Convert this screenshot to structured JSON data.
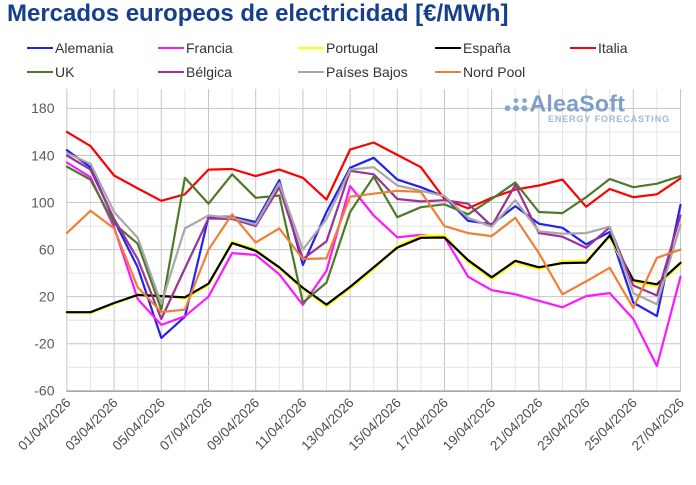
{
  "title": "Mercados europeos de electricidad [€/MWh]",
  "title_color": "#16408c",
  "watermark": {
    "brand": "AleaSoft",
    "tagline": "ENERGY FORECASTING",
    "brand_color": "#7d9fc7",
    "tagline_color": "#9fb9d6"
  },
  "axis": {
    "y_tick_labels": [
      "180",
      "140",
      "100",
      "60",
      "20",
      "-20",
      "-60"
    ],
    "x_tick_labels": [
      "01/04/2026",
      "03/04/2026",
      "05/04/2026",
      "07/04/2026",
      "09/04/2026",
      "11/04/2026",
      "13/04/2026",
      "15/04/2026",
      "17/04/2026",
      "19/04/2026",
      "21/04/2026",
      "23/04/2026",
      "25/04/2026",
      "27/04/2026"
    ]
  },
  "chart_data": {
    "type": "line",
    "title": "Mercados europeos de electricidad [€/MWh]",
    "xlabel": "",
    "ylabel": "",
    "ylim": [
      -60,
      196.5
    ],
    "y_major_step": 40,
    "y_minor_step": 20,
    "grid": true,
    "legend_position": "top",
    "x": [
      "01/04/2026",
      "02/04/2026",
      "03/04/2026",
      "04/04/2026",
      "05/04/2026",
      "06/04/2026",
      "07/04/2026",
      "08/04/2026",
      "09/04/2026",
      "10/04/2026",
      "11/04/2026",
      "12/04/2026",
      "13/04/2026",
      "14/04/2026",
      "15/04/2026",
      "16/04/2026",
      "17/04/2026",
      "18/04/2026",
      "19/04/2026",
      "20/04/2026",
      "21/04/2026",
      "22/04/2026",
      "23/04/2026",
      "24/04/2026",
      "25/04/2026",
      "26/04/2026",
      "27/04/2026"
    ],
    "series": [
      {
        "name": "Alemania",
        "color": "#2222f5",
        "values": [
          144.5,
          130,
          85,
          45,
          -15,
          3,
          88,
          88,
          83.5,
          119,
          47,
          92,
          129.5,
          138,
          119.5,
          113,
          105,
          84.5,
          81.5,
          97,
          82,
          78.5,
          64.5,
          75,
          15,
          3.5,
          98
        ]
      },
      {
        "name": "Francia",
        "color": "#ff17ff",
        "values": [
          134,
          121.5,
          79,
          18,
          -4,
          3.3,
          20,
          57,
          55.5,
          39,
          13,
          42,
          114,
          89,
          70.5,
          72.5,
          70.5,
          37,
          25.5,
          22,
          16.5,
          11,
          20.5,
          23,
          1,
          -39,
          37
        ]
      },
      {
        "name": "Portugal",
        "color": "#ffff00",
        "values": [
          6.3,
          6.3,
          14,
          21.5,
          21,
          18.5,
          30,
          66.5,
          60,
          44,
          26.5,
          12,
          27,
          43.5,
          63,
          71.5,
          72,
          49.5,
          35,
          49,
          43.5,
          50,
          50.5,
          71,
          32.5,
          29,
          47.5
        ]
      },
      {
        "name": "España",
        "color": "#000000",
        "values": [
          6.8,
          6.8,
          14.6,
          21.5,
          20.5,
          19.5,
          31,
          65.5,
          59,
          45,
          27.5,
          13.3,
          28.3,
          45,
          61.7,
          70,
          70.3,
          51,
          36.5,
          50.5,
          45,
          48.5,
          49,
          72,
          34,
          30.5,
          48.8
        ]
      },
      {
        "name": "Italia",
        "color": "#fe0000",
        "values": [
          160,
          148,
          123,
          112,
          101.5,
          107,
          128,
          128.5,
          122.5,
          128,
          121,
          102.5,
          145,
          151,
          140.5,
          130,
          103,
          95,
          104,
          111,
          114.5,
          119.5,
          96.5,
          111.5,
          104.5,
          107,
          120.5
        ]
      },
      {
        "name": "UK",
        "color": "#4e7a27",
        "values": [
          130.5,
          119.5,
          82,
          65,
          9,
          121,
          99,
          124,
          104,
          106,
          15,
          32,
          92,
          122,
          87.5,
          96,
          98.5,
          90,
          103,
          117,
          92,
          91,
          104.5,
          120,
          113,
          116,
          122.5
        ]
      },
      {
        "name": "Bélgica",
        "color": "#9a3297",
        "values": [
          140,
          128,
          86,
          52,
          1,
          44,
          86.5,
          86,
          80,
          113,
          52,
          67,
          127,
          124,
          103,
          101,
          102,
          99,
          80,
          115,
          74,
          71,
          61.5,
          79,
          29.5,
          21,
          89
        ]
      },
      {
        "name": "Países Bajos",
        "color": "#a8a8a8",
        "values": [
          142,
          133,
          92,
          70,
          14,
          78,
          89,
          87,
          81.5,
          116.5,
          60,
          86,
          128,
          130,
          114.5,
          110,
          105.5,
          87,
          79.5,
          102,
          75.5,
          73.5,
          74,
          79.5,
          23,
          13.5,
          81
        ]
      },
      {
        "name": "Nord Pool",
        "color": "#f08033",
        "values": [
          74,
          93,
          78,
          28,
          7,
          9,
          60,
          90,
          66,
          78,
          52,
          52.5,
          105,
          107.5,
          110,
          109,
          80,
          74,
          71.5,
          87,
          57,
          22,
          33,
          44.5,
          10.5,
          53,
          60
        ]
      }
    ]
  },
  "grid_colors": {
    "minor": "#e4e4e4",
    "major": "#c6c6c6",
    "axis_line": "#a8a8a8"
  }
}
